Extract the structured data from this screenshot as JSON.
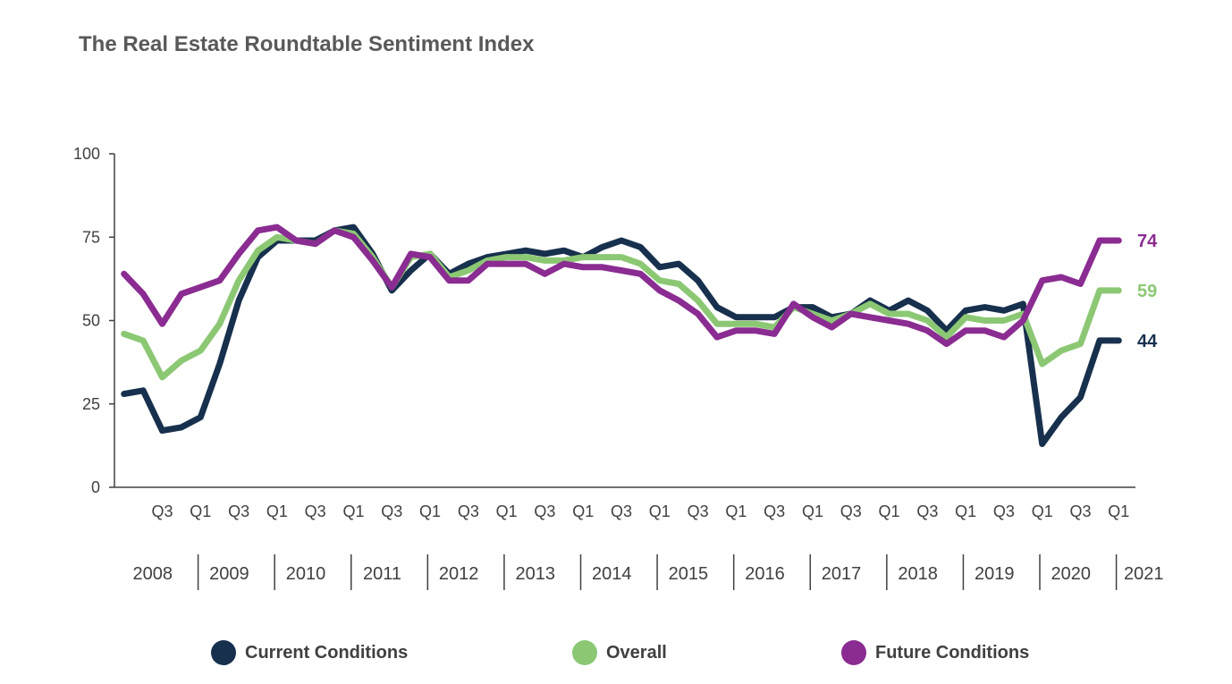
{
  "chart_data": {
    "type": "line",
    "title": "The Real Estate Roundtable Sentiment Index",
    "ylim": [
      0,
      100
    ],
    "yticks": [
      0,
      25,
      50,
      75,
      100
    ],
    "quarter_tick_labels": [
      "Q3",
      "Q1",
      "Q3",
      "Q1",
      "Q3",
      "Q1",
      "Q3",
      "Q1",
      "Q3",
      "Q1",
      "Q3",
      "Q1",
      "Q3",
      "Q1",
      "Q3",
      "Q1",
      "Q3",
      "Q1",
      "Q3",
      "Q1",
      "Q3",
      "Q1",
      "Q3",
      "Q1",
      "Q3",
      "Q1"
    ],
    "years": [
      "2008",
      "2009",
      "2010",
      "2011",
      "2012",
      "2013",
      "2014",
      "2015",
      "2016",
      "2017",
      "2018",
      "2019",
      "2020",
      "2021"
    ],
    "x": [
      "2008 Q1",
      "2008 Q2",
      "2008 Q3",
      "2008 Q4",
      "2009 Q1",
      "2009 Q2",
      "2009 Q3",
      "2009 Q4",
      "2010 Q1",
      "2010 Q2",
      "2010 Q3",
      "2010 Q4",
      "2011 Q1",
      "2011 Q2",
      "2011 Q3",
      "2011 Q4",
      "2012 Q1",
      "2012 Q2",
      "2012 Q3",
      "2012 Q4",
      "2013 Q1",
      "2013 Q2",
      "2013 Q3",
      "2013 Q4",
      "2014 Q1",
      "2014 Q2",
      "2014 Q3",
      "2014 Q4",
      "2015 Q1",
      "2015 Q2",
      "2015 Q3",
      "2015 Q4",
      "2016 Q1",
      "2016 Q2",
      "2016 Q3",
      "2016 Q4",
      "2017 Q1",
      "2017 Q2",
      "2017 Q3",
      "2017 Q4",
      "2018 Q1",
      "2018 Q2",
      "2018 Q3",
      "2018 Q4",
      "2019 Q1",
      "2019 Q2",
      "2019 Q3",
      "2019 Q4",
      "2020 Q1",
      "2020 Q2",
      "2020 Q3",
      "2020 Q4",
      "2021 Q1"
    ],
    "series": [
      {
        "name": "Current Conditions",
        "color": "#17304d",
        "end_label": "44",
        "values": [
          28,
          29,
          17,
          18,
          21,
          37,
          56,
          69,
          74,
          74,
          74,
          77,
          78,
          70,
          59,
          65,
          70,
          64,
          67,
          69,
          70,
          71,
          70,
          71,
          69,
          72,
          74,
          72,
          66,
          67,
          62,
          54,
          51,
          51,
          51,
          54,
          54,
          51,
          52,
          56,
          53,
          56,
          53,
          47,
          53,
          54,
          53,
          55,
          13,
          21,
          27,
          44,
          44
        ]
      },
      {
        "name": "Overall",
        "color": "#8cc874",
        "end_label": "59",
        "values": [
          46,
          44,
          33,
          38,
          41,
          49,
          62,
          71,
          75,
          74,
          73,
          77,
          76,
          69,
          60,
          69,
          70,
          63,
          65,
          68,
          69,
          69,
          68,
          68,
          69,
          69,
          69,
          67,
          62,
          61,
          56,
          49,
          49,
          49,
          48,
          54,
          52,
          50,
          52,
          55,
          52,
          52,
          50,
          45,
          51,
          50,
          50,
          52,
          37,
          41,
          43,
          59,
          59
        ]
      },
      {
        "name": "Future Conditions",
        "color": "#8a2c91",
        "end_label": "74",
        "values": [
          64,
          58,
          49,
          58,
          60,
          62,
          70,
          77,
          78,
          74,
          73,
          77,
          75,
          68,
          60,
          70,
          69,
          62,
          62,
          67,
          67,
          67,
          64,
          67,
          66,
          66,
          65,
          64,
          59,
          56,
          52,
          45,
          47,
          47,
          46,
          55,
          51,
          48,
          52,
          51,
          50,
          49,
          47,
          43,
          47,
          47,
          45,
          50,
          62,
          63,
          61,
          74,
          74
        ]
      }
    ]
  },
  "legend": {
    "items": [
      {
        "label": "Current Conditions",
        "color": "#17304d"
      },
      {
        "label": "Overall",
        "color": "#8cc874"
      },
      {
        "label": "Future Conditions",
        "color": "#8a2c91"
      }
    ]
  }
}
